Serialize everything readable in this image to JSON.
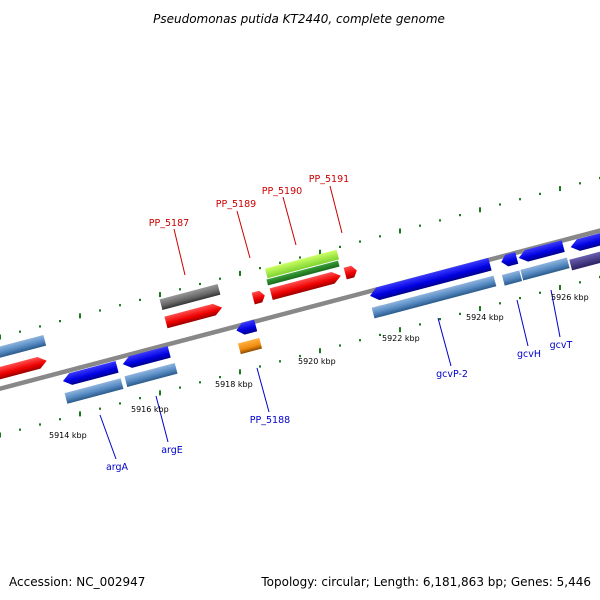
{
  "title": "Pseudomonas putida KT2440, complete genome",
  "footer": {
    "accession": "Accession: NC_002947",
    "summary": "Topology: circular; Length: 6,181,863 bp; Genes: 5,446"
  },
  "scale_labels": [
    "5914 kbp",
    "5916 kbp",
    "5918 kbp",
    "5920 kbp",
    "5922 kbp",
    "5924 kbp",
    "5926 kbp"
  ],
  "gene_labels_top": [
    "PP_5187",
    "PP_5189",
    "PP_5190",
    "PP_5191"
  ],
  "gene_labels_bottom": [
    "argA",
    "argE",
    "PP_5188",
    "gcvP-2",
    "gcvH",
    "gcvT"
  ],
  "colors": {
    "backbone": "#8a8a8a",
    "cds_forward": "#0a0aee",
    "gene_track": "#4a7fb5",
    "hypothetical": "#ee1111",
    "gray_feature": "#666666",
    "green_feature": "#88e040",
    "orange_feature": "#f08c10",
    "purple_feature": "#4a3f8f",
    "tick": "#1a7a1a",
    "label_red": "#cc0000",
    "label_blue": "#0000cc"
  }
}
